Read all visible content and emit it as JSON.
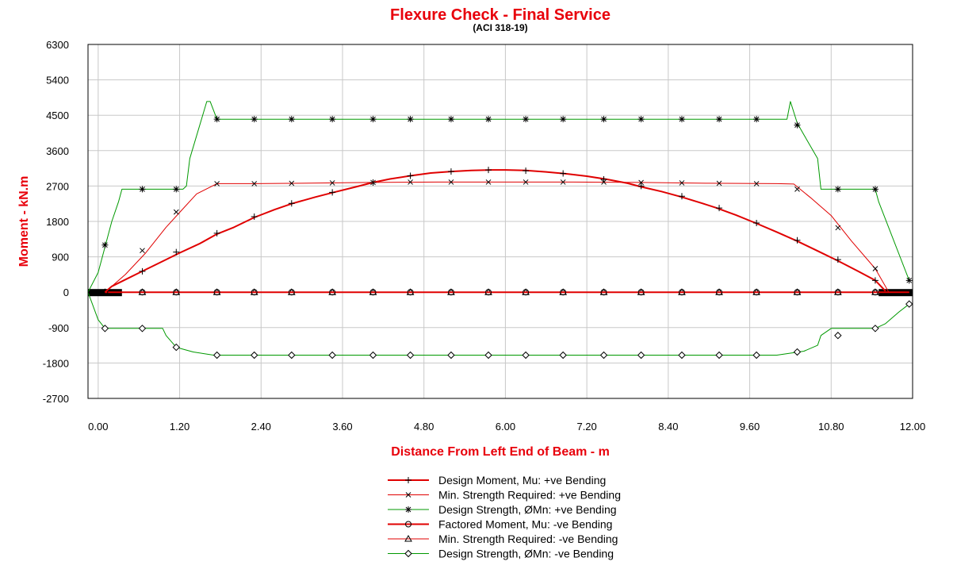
{
  "chart_data": {
    "type": "line",
    "title": "Flexure Check - Final Service",
    "subtitle": "(ACI 318-19)",
    "xlabel": "Distance From Left End of Beam - m",
    "ylabel": "Moment -  kN.m",
    "xlim": [
      -0.15,
      12.0
    ],
    "ylim": [
      -2700,
      6300
    ],
    "xticks": [
      0.0,
      1.2,
      2.4,
      3.6,
      4.8,
      6.0,
      7.2,
      8.4,
      9.6,
      10.8,
      12.0
    ],
    "xtick_labels": [
      "0.00",
      "1.20",
      "2.40",
      "3.60",
      "4.80",
      "6.00",
      "7.20",
      "8.40",
      "9.60",
      "10.80",
      "12.00"
    ],
    "yticks": [
      -2700,
      -1800,
      -900,
      0,
      900,
      1800,
      2700,
      3600,
      4500,
      5400,
      6300
    ],
    "ytick_labels": [
      "-2700",
      "-1800",
      "-900",
      "0",
      "900",
      "1800",
      "2700",
      "3600",
      "4500",
      "5400",
      "6300"
    ],
    "grid": true,
    "legend_position": "bottom-center",
    "supports": [
      {
        "x_from": -0.15,
        "x_to": 0.35
      },
      {
        "x_from": 11.5,
        "x_to": 12.0
      }
    ],
    "series": [
      {
        "name": "Design Moment, Mu: +ve Bending",
        "color": "#e00000",
        "width": 2,
        "marker": "plus",
        "x": [
          0.1,
          0.2,
          0.4,
          0.6,
          0.8,
          1.0,
          1.2,
          1.5,
          1.75,
          2.0,
          2.3,
          2.6,
          2.85,
          3.2,
          3.45,
          3.8,
          4.05,
          4.3,
          4.6,
          4.9,
          5.2,
          5.5,
          5.8,
          6.0,
          6.3,
          6.6,
          6.9,
          7.2,
          7.5,
          7.8,
          8.0,
          8.3,
          8.6,
          8.9,
          9.1,
          9.4,
          9.7,
          10.0,
          10.3,
          10.6,
          10.9,
          11.2,
          11.45,
          11.6
        ],
        "y": [
          0,
          150,
          320,
          490,
          660,
          830,
          1000,
          1240,
          1480,
          1650,
          1900,
          2100,
          2250,
          2420,
          2530,
          2680,
          2790,
          2880,
          2960,
          3030,
          3070,
          3095,
          3110,
          3110,
          3095,
          3060,
          3010,
          2950,
          2870,
          2770,
          2680,
          2560,
          2420,
          2260,
          2150,
          1960,
          1750,
          1530,
          1300,
          1050,
          800,
          530,
          300,
          30
        ],
        "markers_x": [
          0.65,
          1.15,
          1.75,
          2.3,
          2.85,
          3.45,
          4.05,
          4.6,
          5.2,
          5.75,
          6.3,
          6.85,
          7.45,
          8.0,
          8.6,
          9.15,
          9.7,
          10.3,
          10.9,
          11.45
        ],
        "markers_y": [
          530,
          1020,
          1500,
          1920,
          2260,
          2540,
          2790,
          2960,
          3070,
          3110,
          3090,
          3020,
          2870,
          2700,
          2440,
          2140,
          1760,
          1320,
          830,
          300
        ]
      },
      {
        "name": "Min. Strength Required: +ve Bending",
        "color": "#e00000",
        "width": 1,
        "marker": "x",
        "x": [
          0.1,
          0.4,
          0.7,
          1.0,
          1.2,
          1.45,
          1.75,
          2.3,
          3.0,
          4.0,
          5.0,
          6.0,
          7.0,
          8.0,
          9.0,
          10.0,
          10.25,
          10.5,
          10.8,
          11.1,
          11.45,
          11.65
        ],
        "y": [
          0,
          450,
          1000,
          1650,
          2030,
          2500,
          2760,
          2760,
          2770,
          2790,
          2800,
          2800,
          2800,
          2790,
          2770,
          2760,
          2750,
          2400,
          1950,
          1300,
          600,
          0
        ],
        "markers_x": [
          0.65,
          1.15,
          1.75,
          2.3,
          2.85,
          3.45,
          4.05,
          4.6,
          5.2,
          5.75,
          6.3,
          6.85,
          7.45,
          8.0,
          8.6,
          9.15,
          9.7,
          10.3,
          10.9,
          11.45
        ],
        "markers_y": [
          1060,
          2040,
          2760,
          2760,
          2770,
          2780,
          2790,
          2800,
          2800,
          2800,
          2800,
          2800,
          2800,
          2790,
          2780,
          2770,
          2760,
          2620,
          1640,
          600
        ]
      },
      {
        "name": "Design Strength, ØMn: +ve Bending",
        "color": "#009900",
        "width": 1,
        "marker": "asterisk",
        "x": [
          -0.15,
          0.0,
          0.2,
          0.3,
          0.35,
          1.25,
          1.3,
          1.35,
          1.6,
          1.65,
          1.75,
          9.75,
          10.15,
          10.2,
          10.3,
          10.4,
          10.6,
          10.65,
          11.45,
          11.5,
          11.95
        ],
        "y": [
          0,
          500,
          1800,
          2300,
          2620,
          2620,
          2700,
          3400,
          4850,
          4850,
          4400,
          4400,
          4400,
          4850,
          4300,
          4000,
          3400,
          2620,
          2620,
          2300,
          300
        ],
        "markers_x": [
          0.1,
          0.65,
          1.15,
          1.75,
          2.3,
          2.85,
          3.45,
          4.05,
          4.6,
          5.2,
          5.75,
          6.3,
          6.85,
          7.45,
          8.0,
          8.6,
          9.15,
          9.7,
          10.3,
          10.9,
          11.45,
          11.95
        ],
        "markers_y": [
          1200,
          2620,
          2620,
          4400,
          4400,
          4400,
          4400,
          4400,
          4400,
          4400,
          4400,
          4400,
          4400,
          4400,
          4400,
          4400,
          4400,
          4400,
          4250,
          2620,
          2620,
          300
        ]
      },
      {
        "name": "Factored Moment, Mu: -ve Bending",
        "color": "#e00000",
        "width": 2,
        "marker": "circle",
        "x": [
          0.1,
          11.95
        ],
        "y": [
          0,
          0
        ],
        "markers_x": [
          0.1,
          0.65,
          1.15,
          1.75,
          2.3,
          2.85,
          3.45,
          4.05,
          4.6,
          5.2,
          5.75,
          6.3,
          6.85,
          7.45,
          8.0,
          8.6,
          9.15,
          9.7,
          10.3,
          10.9,
          11.45
        ],
        "markers_y": [
          0,
          0,
          0,
          0,
          0,
          0,
          0,
          0,
          0,
          0,
          0,
          0,
          0,
          0,
          0,
          0,
          0,
          0,
          0,
          0,
          0
        ]
      },
      {
        "name": "Min. Strength Required: -ve Bending",
        "color": "#e00000",
        "width": 1,
        "marker": "triangle",
        "x": [
          0.1,
          11.95
        ],
        "y": [
          0,
          0
        ],
        "markers_x": [
          0.1,
          0.65,
          1.15,
          1.75,
          2.3,
          2.85,
          3.45,
          4.05,
          4.6,
          5.2,
          5.75,
          6.3,
          6.85,
          7.45,
          8.0,
          8.6,
          9.15,
          9.7,
          10.3,
          10.9,
          11.45
        ],
        "markers_y": [
          0,
          0,
          0,
          0,
          0,
          0,
          0,
          0,
          0,
          0,
          0,
          0,
          0,
          0,
          0,
          0,
          0,
          0,
          0,
          0,
          0
        ]
      },
      {
        "name": "Design Strength, ØMn: -ve Bending",
        "color": "#009900",
        "width": 1,
        "marker": "diamond",
        "x": [
          -0.15,
          0.0,
          0.1,
          0.35,
          0.95,
          1.0,
          1.15,
          1.4,
          1.7,
          10.0,
          10.4,
          10.6,
          10.65,
          10.8,
          11.45,
          11.6,
          11.8,
          11.95
        ],
        "y": [
          0,
          -700,
          -920,
          -920,
          -920,
          -1100,
          -1400,
          -1520,
          -1600,
          -1600,
          -1500,
          -1350,
          -1100,
          -920,
          -920,
          -800,
          -500,
          -300
        ],
        "markers_x": [
          0.1,
          0.65,
          1.15,
          1.75,
          2.3,
          2.85,
          3.45,
          4.05,
          4.6,
          5.2,
          5.75,
          6.3,
          6.85,
          7.45,
          8.0,
          8.6,
          9.15,
          9.7,
          10.3,
          10.9,
          11.45,
          11.95
        ],
        "markers_y": [
          -920,
          -920,
          -1400,
          -1600,
          -1600,
          -1600,
          -1600,
          -1600,
          -1600,
          -1600,
          -1600,
          -1600,
          -1600,
          -1600,
          -1600,
          -1600,
          -1600,
          -1600,
          -1520,
          -1100,
          -920,
          -300
        ]
      }
    ]
  }
}
